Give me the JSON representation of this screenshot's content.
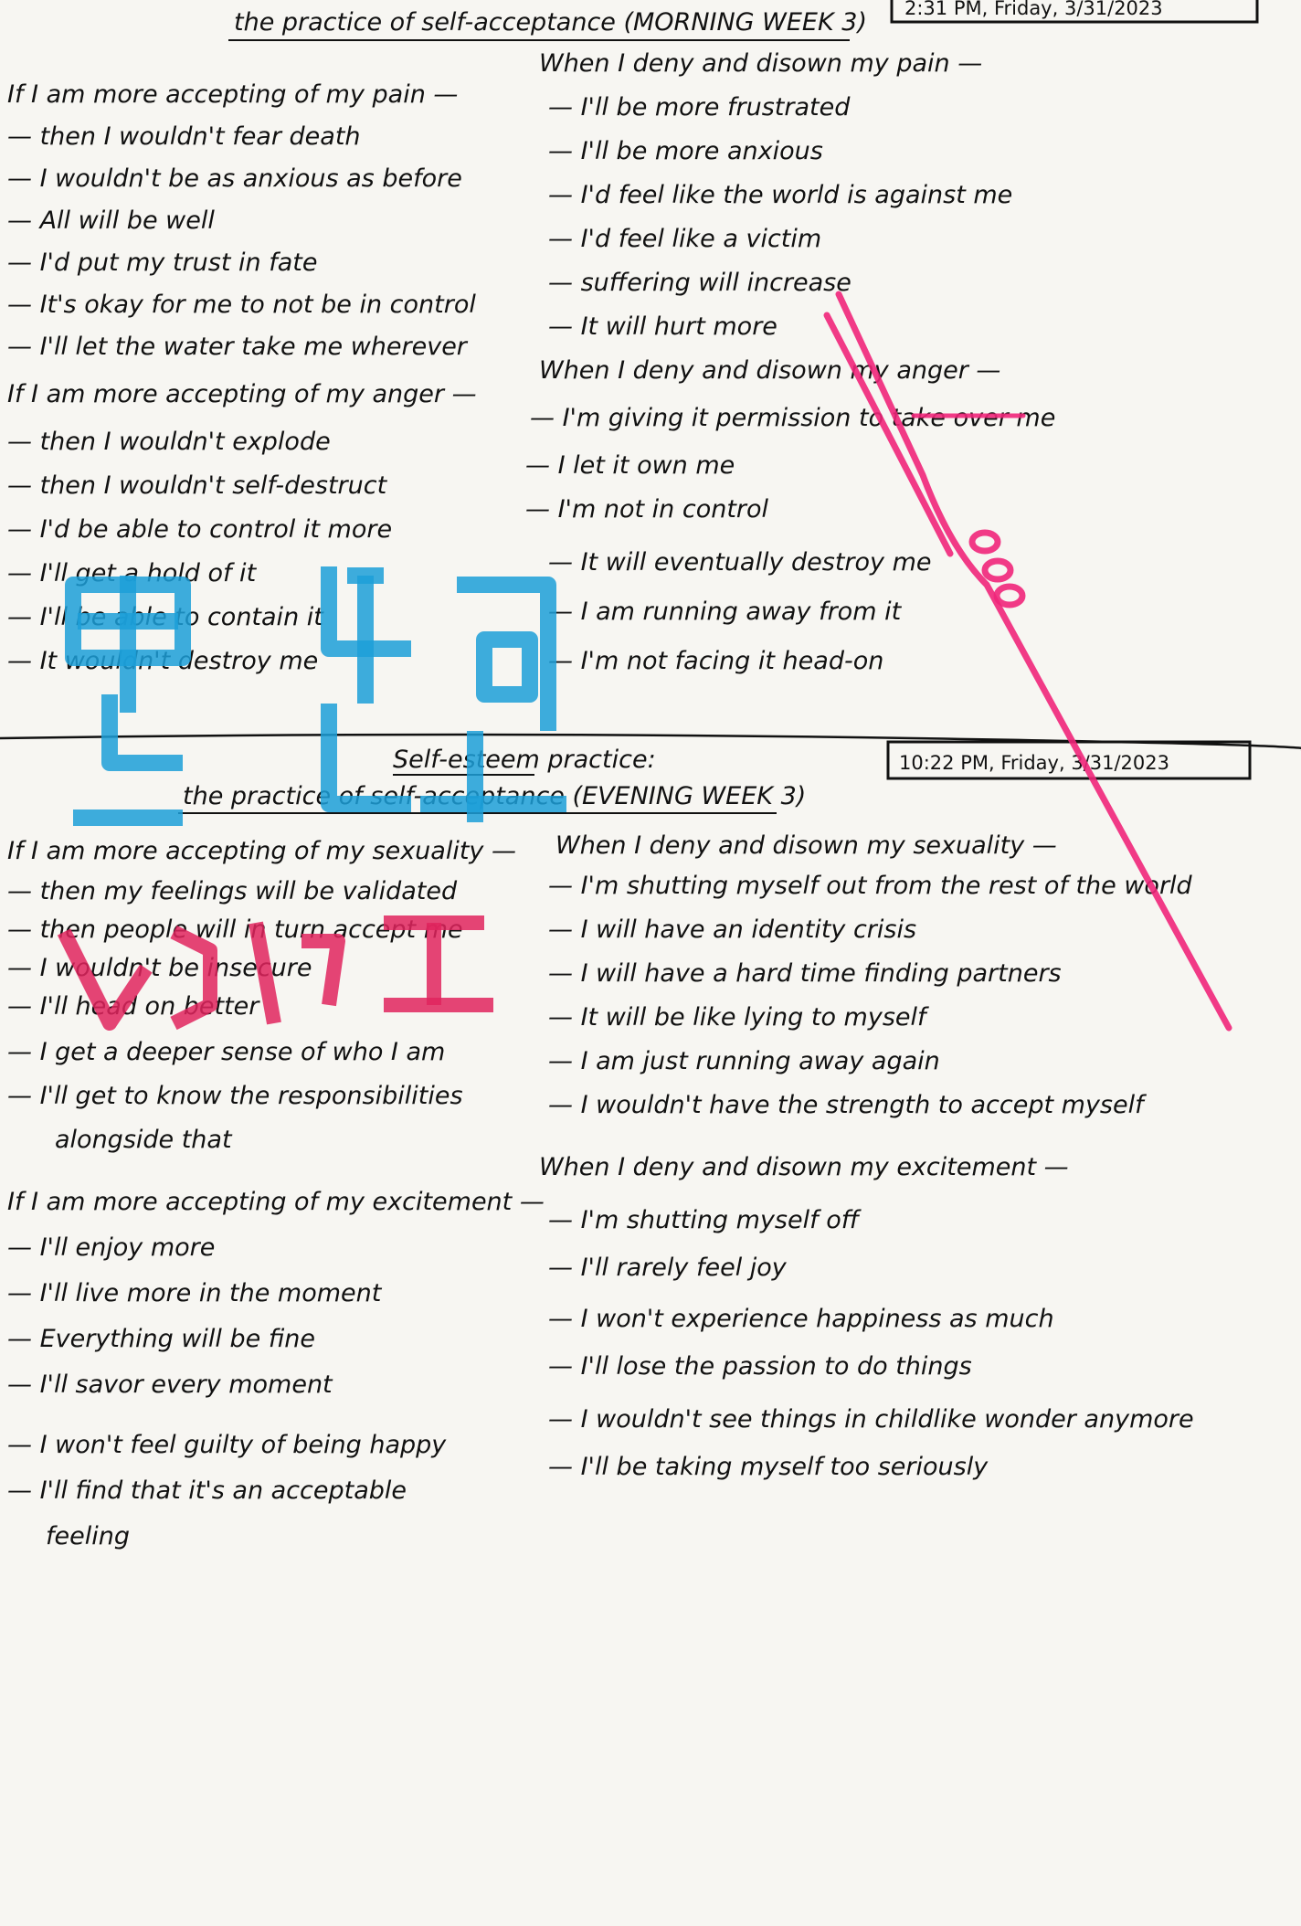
{
  "morning": {
    "title": "the practice of self-acceptance (MORNING WEEK 3)",
    "timestamp": "2:31 PM, Friday, 3/31/2023",
    "pain_accept": {
      "heading": "If I am more accepting of my pain —",
      "lines": [
        "— then I wouldn't fear death",
        "— I wouldn't be as anxious as before",
        "— All will be well",
        "— I'd put my trust in fate",
        "— It's okay for me to not be in control",
        "— I'll let the water take me wherever"
      ]
    },
    "pain_deny": {
      "heading": "When I deny and disown my pain —",
      "lines": [
        "— I'll be more frustrated",
        "— I'll be more anxious",
        "— I'd feel like the world is against me",
        "— I'd feel like a victim",
        "— suffering will increase",
        "— It will hurt more"
      ]
    },
    "anger_accept": {
      "heading": "If I am more accepting of my anger —",
      "lines": [
        "— then I wouldn't explode",
        "— then I wouldn't self-destruct",
        "— I'd be able to control it more",
        "— I'll get a hold of it",
        "— I'll be able to contain it",
        "— It wouldn't destroy me"
      ]
    },
    "anger_deny": {
      "heading": "When I deny and disown my anger —",
      "lines": [
        "— I'm giving it permission to take over me",
        "— I let it own me",
        "— I'm not in control",
        "— It will eventually destroy me",
        "— I am running away from it",
        "— I'm not facing it head-on"
      ]
    }
  },
  "evening": {
    "note": "Self-esteem practice:",
    "title": "the practice of self-acceptance (EVENING WEEK 3)",
    "timestamp": "10:22 PM, Friday, 3/31/2023",
    "sexuality_accept": {
      "heading": "If I am more accepting of my sexuality —",
      "lines": [
        "— then my feelings will be validated",
        "— then people will in turn accept me",
        "— I wouldn't be insecure",
        "— I'll head on better",
        "— I get a deeper sense of who I am",
        "— I'll get to know the responsibilities",
        "alongside that"
      ]
    },
    "sexuality_deny": {
      "heading": "When I deny and disown my sexuality —",
      "lines": [
        "— I'm shutting myself out from the rest of the world",
        "— I will have an identity crisis",
        "— I will have a hard time finding partners",
        "— It will be like lying to myself",
        "— I am just running away again",
        "— I wouldn't have the strength to accept myself"
      ]
    },
    "excitement_accept": {
      "heading": "If I am more accepting of my excitement —",
      "lines": [
        "— I'll enjoy more",
        "— I'll live more in the moment",
        "— Everything will be fine",
        "— I'll savor every moment",
        "— I won't feel guilty of being happy",
        "— I'll find that it's an acceptable",
        "feeling"
      ]
    },
    "excitement_deny": {
      "heading": "When I deny and disown my excitement —",
      "lines": [
        "— I'm shutting myself off",
        "— I'll rarely feel joy",
        "— I won't experience happiness as much",
        "— I'll lose the passion to do things",
        "— I wouldn't see things in childlike wonder anymore",
        "— I'll be taking myself too seriously"
      ]
    }
  },
  "stamps": {
    "blue_seal": "blue square-script seal stamp",
    "red_seal": "red seal stamp",
    "pink_ribbon": "pink ribbon doodle"
  },
  "colors": {
    "paper": "#f7f6f2",
    "ink": "#111111",
    "blue_stamp": "#1c9fd8",
    "red_stamp": "#e0245e",
    "pink_ribbon": "#f0267a"
  }
}
